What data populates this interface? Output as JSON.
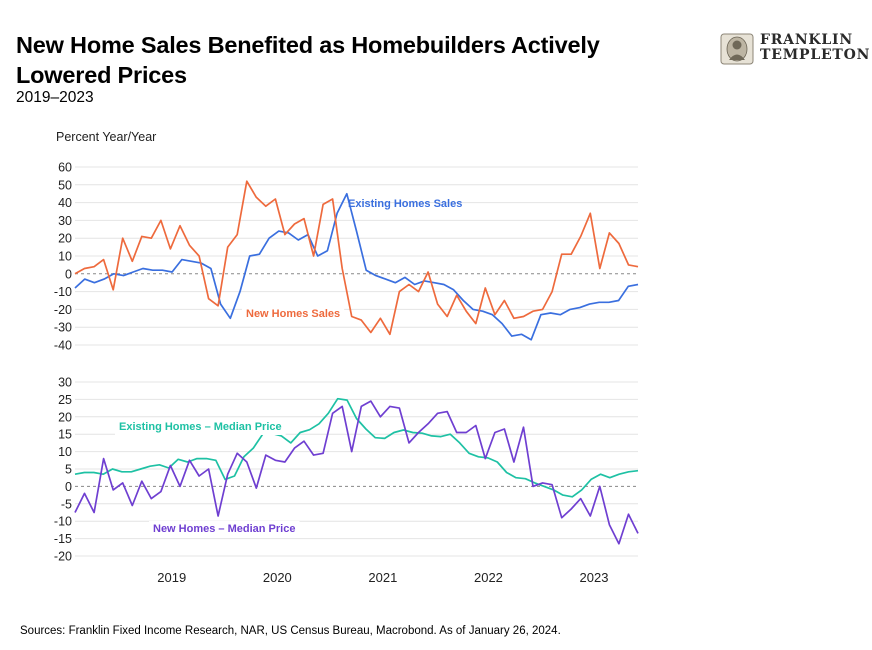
{
  "header": {
    "title": "New Home Sales Benefited as Homebuilders Actively Lowered Prices",
    "subtitle": "2019–2023"
  },
  "logo": {
    "line1": "FRANKLIN",
    "line2": "TEMPLETON",
    "icon": "portrait-medallion-icon"
  },
  "footer": {
    "source": "Sources: Franklin Fixed Income Research, NAR, US Census Bureau, Macrobond. As of January 26, 2024."
  },
  "chart_data": [
    {
      "type": "line",
      "ylabel": "Percent Year/Year",
      "ylim": [
        -40,
        60
      ],
      "yticks": [
        60,
        50,
        40,
        30,
        20,
        10,
        0,
        -10,
        -20,
        -30,
        -40
      ],
      "grid": true,
      "zero_line": "dashed",
      "x_start": "2018-08",
      "x_end": "2023-12",
      "series": [
        {
          "name": "Existing Homes Sales",
          "color": "#3a6fdf",
          "values": [
            -8,
            -3,
            -5,
            -3,
            0,
            -1,
            1,
            3,
            2,
            2,
            1,
            8,
            7,
            6,
            3,
            -17,
            -25,
            -10,
            10,
            11,
            20,
            24,
            23,
            19,
            22,
            10,
            13,
            34,
            45,
            24,
            2,
            -1,
            -3,
            -5,
            -2,
            -6,
            -4,
            -5,
            -6,
            -9,
            -15,
            -20,
            -21,
            -23,
            -28,
            -35,
            -34,
            -37,
            -23,
            -22,
            -23,
            -20,
            -19,
            -17,
            -16,
            -16,
            -15,
            -7,
            -6
          ]
        },
        {
          "name": "New Homes Sales",
          "color": "#ee6a3d",
          "values": [
            0,
            3,
            4,
            8,
            -9,
            20,
            7,
            21,
            20,
            30,
            14,
            27,
            16,
            10,
            -14,
            -18,
            15,
            22,
            52,
            43,
            38,
            42,
            22,
            28,
            31,
            10,
            39,
            42,
            3,
            -24,
            -26,
            -33,
            -25,
            -34,
            -10,
            -6,
            -10,
            1,
            -17,
            -24,
            -12,
            -21,
            -28,
            -8,
            -23,
            -15,
            -25,
            -24,
            -21,
            -20,
            -10,
            11,
            11,
            21,
            34,
            3,
            23,
            17,
            5,
            4
          ]
        }
      ]
    },
    {
      "type": "line",
      "ylim": [
        -20,
        30
      ],
      "yticks": [
        30,
        25,
        20,
        15,
        10,
        5,
        0,
        -5,
        -10,
        -15,
        -20
      ],
      "grid": true,
      "zero_line": "dashed",
      "x_start": "2018-08",
      "x_end": "2023-12",
      "xticks": [
        {
          "label": "2019",
          "value": 2019
        },
        {
          "label": "2020",
          "value": 2020
        },
        {
          "label": "2021",
          "value": 2021
        },
        {
          "label": "2022",
          "value": 2022
        },
        {
          "label": "2023",
          "value": 2023
        }
      ],
      "series": [
        {
          "name": "Existing Homes – Median Price",
          "color": "#1ec1a4",
          "values": [
            3.5,
            4,
            4,
            3.5,
            5,
            4.2,
            4.2,
            5,
            5.8,
            6.2,
            5.3,
            7.8,
            7,
            8,
            8,
            7.5,
            2,
            3,
            8.5,
            11,
            15,
            15.2,
            14.5,
            12.5,
            15.5,
            16.3,
            18,
            21,
            25.2,
            24.8,
            19.5,
            16.5,
            14,
            13.8,
            15.5,
            16.2,
            15.5,
            15.3,
            14.5,
            14.3,
            15,
            12.5,
            9.5,
            8.5,
            8.2,
            7,
            4,
            2.5,
            2.2,
            1,
            0,
            -1,
            -2.5,
            -3,
            -1,
            2,
            3.5,
            2.5,
            3.5,
            4.2,
            4.5
          ]
        },
        {
          "name": "New Homes – Median Price",
          "color": "#6f3fd1",
          "values": [
            -7.5,
            -2,
            -7.5,
            8,
            -1,
            1,
            -5.5,
            1.5,
            -3.5,
            -1.5,
            6,
            0,
            7.5,
            3,
            5,
            -8.5,
            3.5,
            9.5,
            7,
            -0.5,
            9,
            7.5,
            7,
            11,
            13,
            9,
            9.5,
            21,
            23,
            10,
            23,
            24.5,
            20,
            23,
            22.5,
            12.5,
            15.5,
            18,
            21,
            21.5,
            15.5,
            15.5,
            17.5,
            8,
            15.5,
            16.5,
            7,
            17,
            0,
            1,
            0.5,
            -9,
            -6.5,
            -3.5,
            -8.5,
            0,
            -11,
            -16.5,
            -8,
            -13.5
          ]
        }
      ]
    }
  ]
}
